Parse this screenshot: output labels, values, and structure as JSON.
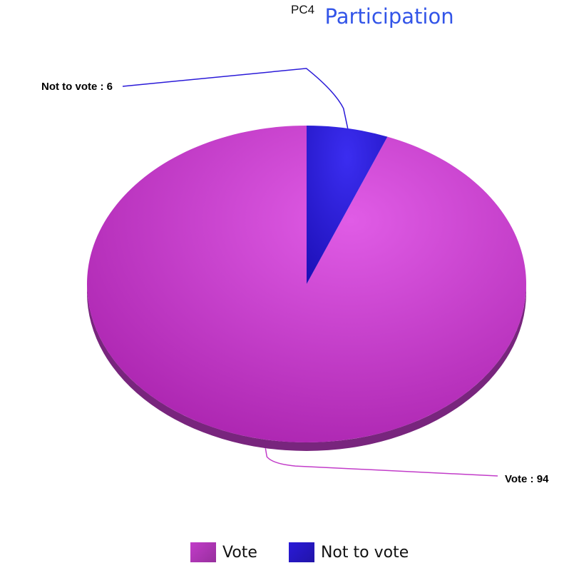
{
  "chart_data": {
    "type": "pie",
    "title": "Participation",
    "subtitle": "PC4",
    "categories": [
      "Vote",
      "Not to vote"
    ],
    "values": [
      94,
      6
    ],
    "colors": [
      "#c23cc9",
      "#2a1ad8"
    ],
    "slice_labels": [
      "Vote : 94",
      "Not to vote : 6"
    ],
    "legend_position": "bottom",
    "style": "3d-perspective"
  }
}
